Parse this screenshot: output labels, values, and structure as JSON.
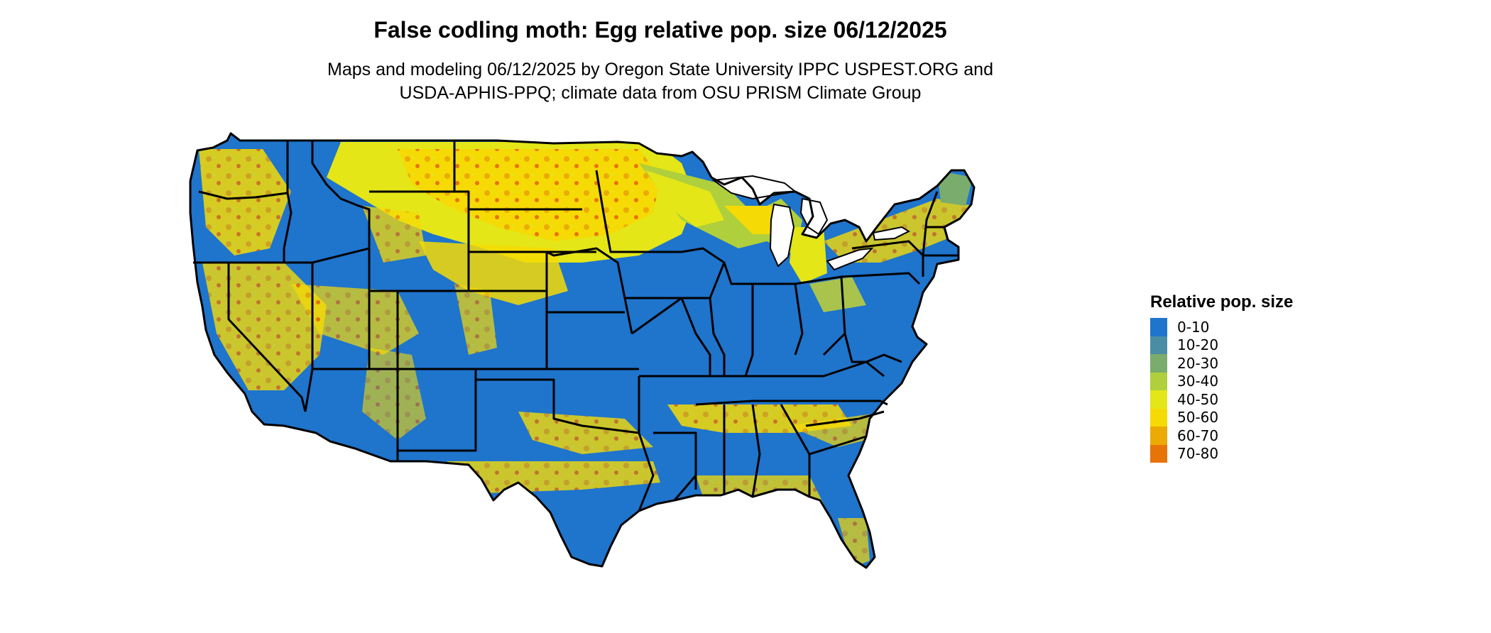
{
  "title": "False codling moth: Egg relative pop. size 06/12/2025",
  "subtitle_lines": [
    "Maps and modeling 06/12/2025 by Oregon State University IPPC USPEST.ORG and",
    "USDA-APHIS-PPQ; climate data from OSU PRISM Climate Group"
  ],
  "legend": {
    "title": "Relative pop. size",
    "items": [
      {
        "label": "0-10",
        "color": "#1f74cc"
      },
      {
        "label": "10-20",
        "color": "#4a8ea5"
      },
      {
        "label": "20-30",
        "color": "#7aac6e"
      },
      {
        "label": "30-40",
        "color": "#b0cf3c"
      },
      {
        "label": "40-50",
        "color": "#e4e617"
      },
      {
        "label": "50-60",
        "color": "#f6da05"
      },
      {
        "label": "60-70",
        "color": "#ecaa04"
      },
      {
        "label": "70-80",
        "color": "#e77408"
      }
    ]
  },
  "colors": {
    "base": "#1f74cc",
    "border": "#000000"
  }
}
